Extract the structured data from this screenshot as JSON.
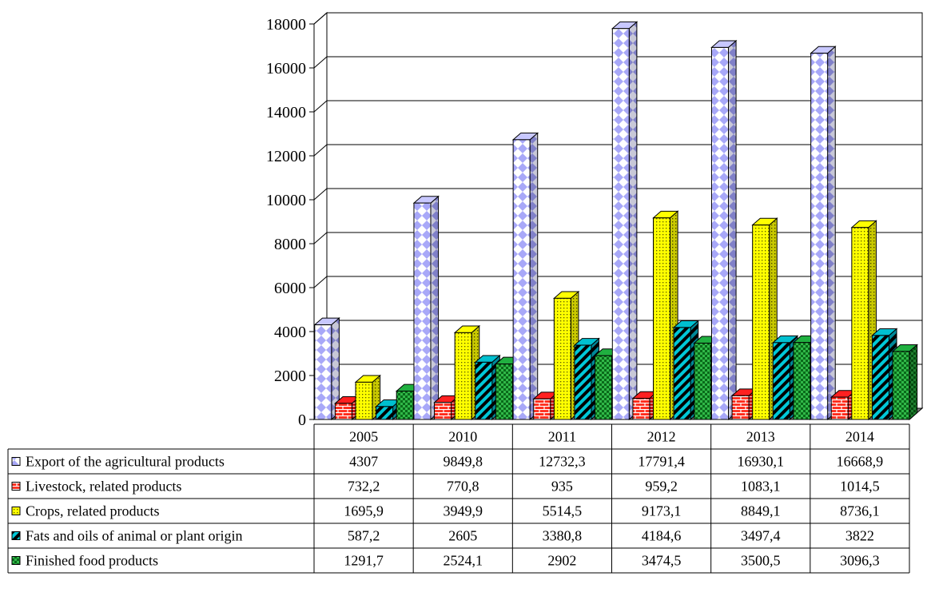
{
  "chart_data": {
    "type": "bar",
    "categories": [
      "2005",
      "2010",
      "2011",
      "2012",
      "2013",
      "2014"
    ],
    "ylim": [
      0,
      18000
    ],
    "yticks": [
      0,
      2000,
      4000,
      6000,
      8000,
      10000,
      12000,
      14000,
      16000,
      18000
    ],
    "grid": true,
    "three_d": true,
    "legend_placement": "data-table-left",
    "series": [
      {
        "name": "Export of the agricultural products",
        "color": "#c8c8ff",
        "pattern": "diamonds",
        "values": [
          4307,
          9849.8,
          12732.3,
          17791.4,
          16930.1,
          16668.9
        ],
        "labels": [
          "4307",
          "9849,8",
          "12732,3",
          "17791,4",
          "16930,1",
          "16668,9"
        ]
      },
      {
        "name": "Livestock, related products",
        "color": "#ff2020",
        "pattern": "bricks",
        "values": [
          732.2,
          770.8,
          935,
          959.2,
          1083.1,
          1014.5
        ],
        "labels": [
          "732,2",
          "770,8",
          "935",
          "959,2",
          "1083,1",
          "1014,5"
        ]
      },
      {
        "name": "Crops, related products",
        "color": "#ffff00",
        "pattern": "dots",
        "values": [
          1695.9,
          3949.9,
          5514.5,
          9173.1,
          8849.1,
          8736.1
        ],
        "labels": [
          "1695,9",
          "3949,9",
          "5514,5",
          "9173,1",
          "8849,1",
          "8736,1"
        ]
      },
      {
        "name": "Fats and oils of animal or plant origin",
        "color": "#00c0d0",
        "pattern": "stripes",
        "values": [
          587.2,
          2605,
          3380.8,
          4184.6,
          3497.4,
          3822
        ],
        "labels": [
          "587,2",
          "2605",
          "3380,8",
          "4184,6",
          "3497,4",
          "3822"
        ]
      },
      {
        "name": "Finished food products",
        "color": "#20b040",
        "pattern": "checks",
        "values": [
          1291.7,
          2524.1,
          2902,
          3474.5,
          3500.5,
          3096.3
        ],
        "labels": [
          "1291,7",
          "2524,1",
          "2902",
          "3474,5",
          "3500,5",
          "3096,3"
        ]
      }
    ]
  }
}
